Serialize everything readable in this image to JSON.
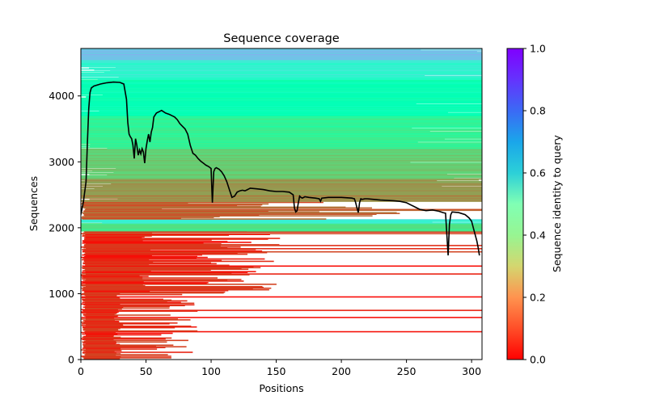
{
  "chart_data": {
    "type": "heatmap",
    "title": "Sequence coverage",
    "xlabel": "Positions",
    "ylabel": "Sequences",
    "xlim": [
      0,
      308
    ],
    "ylim": [
      0,
      4720
    ],
    "x_ticks": [
      0,
      50,
      100,
      150,
      200,
      250,
      300
    ],
    "y_ticks": [
      0,
      1000,
      2000,
      3000,
      4000
    ],
    "grid": false,
    "colorbar": {
      "label": "Sequence identity to query",
      "colormap": "rainbow_r",
      "range": [
        0,
        1
      ],
      "ticks": [
        0.0,
        0.2,
        0.4,
        0.6,
        0.8,
        1.0
      ],
      "tick_labels": [
        "0.0",
        "0.2",
        "0.4",
        "0.6",
        "0.8",
        "1.0"
      ]
    },
    "identity_bands": [
      {
        "y_from": 0,
        "y_to": 1950,
        "identity": 0.05,
        "span": "partial"
      },
      {
        "y_from": 1950,
        "y_to": 2070,
        "identity": 0.35,
        "span": "full"
      },
      {
        "y_from": 2070,
        "y_to": 2130,
        "identity": 0.62,
        "span": "full"
      },
      {
        "y_from": 2130,
        "y_to": 2400,
        "identity": 0.12,
        "span": "partial"
      },
      {
        "y_from": 2400,
        "y_to": 2750,
        "identity": 0.2,
        "span": "full"
      },
      {
        "y_from": 2750,
        "y_to": 3200,
        "identity": 0.3,
        "span": "full"
      },
      {
        "y_from": 3200,
        "y_to": 3700,
        "identity": 0.4,
        "span": "full"
      },
      {
        "y_from": 3700,
        "y_to": 4250,
        "identity": 0.5,
        "span": "full"
      },
      {
        "y_from": 4250,
        "y_to": 4550,
        "identity": 0.6,
        "span": "full"
      },
      {
        "y_from": 4550,
        "y_to": 4720,
        "identity": 0.72,
        "span": "full"
      }
    ],
    "coverage_line": {
      "color": "#000000",
      "x": [
        0,
        2,
        4,
        5,
        6,
        7,
        8,
        10,
        15,
        20,
        25,
        30,
        33,
        35,
        36,
        37,
        38,
        39,
        40,
        41,
        42,
        43,
        44,
        45,
        46,
        47,
        48,
        49,
        50,
        51,
        52,
        53,
        54,
        55,
        56,
        58,
        60,
        62,
        65,
        68,
        70,
        72,
        74,
        76,
        78,
        80,
        82,
        84,
        86,
        88,
        90,
        92,
        94,
        96,
        98,
        100,
        101,
        102,
        103,
        104,
        105,
        106,
        108,
        110,
        112,
        114,
        116,
        118,
        120,
        122,
        124,
        126,
        128,
        130,
        135,
        140,
        145,
        150,
        155,
        160,
        163,
        164,
        165,
        166,
        167,
        168,
        169,
        170,
        172,
        175,
        180,
        183,
        184,
        185,
        190,
        200,
        208,
        210,
        211,
        212,
        213,
        214,
        215,
        216,
        218,
        220,
        225,
        230,
        240,
        245,
        250,
        252,
        255,
        258,
        260,
        265,
        270,
        275,
        278,
        280,
        281,
        282,
        283,
        284,
        285,
        290,
        295,
        298,
        300,
        302,
        304,
        305,
        306
      ],
      "y": [
        2200,
        2400,
        2700,
        3300,
        3800,
        4050,
        4120,
        4150,
        4180,
        4200,
        4210,
        4205,
        4180,
        3950,
        3600,
        3420,
        3380,
        3350,
        3250,
        3050,
        3350,
        3250,
        3100,
        3180,
        3120,
        3200,
        3150,
        2980,
        3200,
        3320,
        3420,
        3300,
        3450,
        3520,
        3680,
        3740,
        3760,
        3780,
        3740,
        3720,
        3700,
        3680,
        3640,
        3580,
        3540,
        3500,
        3420,
        3250,
        3130,
        3100,
        3050,
        3010,
        2980,
        2950,
        2930,
        2900,
        2380,
        2850,
        2900,
        2910,
        2900,
        2890,
        2850,
        2790,
        2700,
        2580,
        2460,
        2480,
        2540,
        2560,
        2570,
        2560,
        2580,
        2600,
        2590,
        2580,
        2560,
        2550,
        2550,
        2540,
        2500,
        2300,
        2240,
        2260,
        2380,
        2480,
        2460,
        2450,
        2470,
        2460,
        2450,
        2440,
        2400,
        2450,
        2460,
        2460,
        2450,
        2440,
        2380,
        2300,
        2230,
        2380,
        2440,
        2430,
        2440,
        2440,
        2430,
        2420,
        2410,
        2400,
        2380,
        2360,
        2330,
        2300,
        2280,
        2260,
        2270,
        2250,
        2230,
        2220,
        1900,
        1580,
        2050,
        2200,
        2240,
        2230,
        2200,
        2150,
        2100,
        1950,
        1800,
        1700,
        1580
      ]
    }
  }
}
